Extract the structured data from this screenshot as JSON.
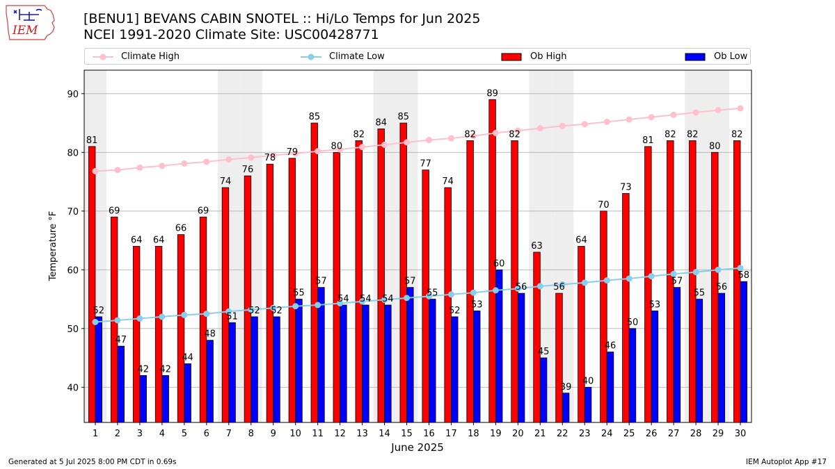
{
  "header": {
    "title_line1": "[BENU1] BEVANS CABIN SNOTEL :: Hi/Lo Temps for Jun 2025",
    "title_line2": "NCEI 1991-2020 Climate Site: USC00428771"
  },
  "logo": {
    "text": "IEM"
  },
  "footer": {
    "generated": "Generated at 5 Jul 2025 8:00 PM CDT in 0.69s",
    "app": "IEM Autoplot App #17"
  },
  "colors": {
    "ob_high": "#ff0000",
    "ob_low": "#0000ff",
    "climate_high": "#ffc0cb",
    "climate_low": "#87ceeb",
    "weekend_band": "#eeeeee",
    "grid": "#b0b0b0"
  },
  "chart_data": {
    "type": "bar",
    "xlabel": "June 2025",
    "ylabel": "Temperature °F",
    "xlim": [
      0.5,
      30.5
    ],
    "ylim": [
      34,
      94
    ],
    "yticks": [
      40,
      50,
      60,
      70,
      80,
      90
    ],
    "grid": "horizontal",
    "legend_placement": "top",
    "shaded_days": [
      1,
      7,
      8,
      14,
      15,
      21,
      22,
      28,
      29
    ],
    "categories": [
      "1",
      "2",
      "3",
      "4",
      "5",
      "6",
      "7",
      "8",
      "9",
      "10",
      "11",
      "12",
      "13",
      "14",
      "15",
      "16",
      "17",
      "18",
      "19",
      "20",
      "21",
      "22",
      "23",
      "24",
      "25",
      "26",
      "27",
      "28",
      "29",
      "30"
    ],
    "legend": [
      "Climate High",
      "Climate Low",
      "Ob High",
      "Ob Low"
    ],
    "series": [
      {
        "name": "Ob High",
        "kind": "bar",
        "values": [
          81,
          69,
          64,
          64,
          66,
          69,
          74,
          76,
          78,
          79,
          85,
          80,
          82,
          84,
          85,
          77,
          74,
          82,
          89,
          82,
          63,
          56,
          64,
          70,
          73,
          81,
          82,
          82,
          80,
          82
        ]
      },
      {
        "name": "Ob Low",
        "kind": "bar",
        "values": [
          52,
          47,
          42,
          42,
          44,
          48,
          51,
          52,
          52,
          55,
          57,
          54,
          54,
          54,
          57,
          55,
          52,
          53,
          60,
          56,
          45,
          39,
          40,
          46,
          50,
          53,
          57,
          55,
          56,
          58
        ]
      },
      {
        "name": "Climate High",
        "kind": "line",
        "values": [
          76.8,
          77.0,
          77.4,
          77.7,
          78.1,
          78.4,
          78.8,
          79.1,
          79.5,
          79.8,
          80.2,
          80.5,
          80.9,
          81.3,
          81.7,
          82.1,
          82.4,
          82.8,
          83.3,
          83.7,
          84.1,
          84.5,
          84.8,
          85.2,
          85.6,
          86.0,
          86.4,
          86.8,
          87.2,
          87.5
        ]
      },
      {
        "name": "Climate Low",
        "kind": "line",
        "values": [
          51.1,
          51.4,
          51.7,
          52.0,
          52.3,
          52.5,
          52.9,
          53.2,
          53.5,
          53.8,
          54.0,
          54.3,
          54.6,
          54.9,
          55.2,
          55.5,
          55.8,
          56.1,
          56.5,
          56.8,
          57.2,
          57.5,
          57.8,
          58.2,
          58.5,
          58.9,
          59.3,
          59.6,
          60.0,
          60.3
        ]
      }
    ]
  }
}
